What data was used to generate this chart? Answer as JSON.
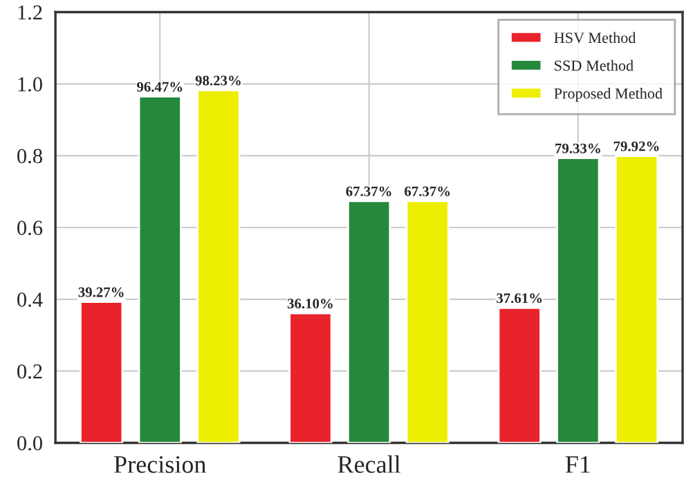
{
  "chart_data": {
    "type": "bar",
    "categories": [
      "Precision",
      "Recall",
      "F1"
    ],
    "series": [
      {
        "name": "HSV Method",
        "color": "#e8232b",
        "values": [
          0.3927,
          0.361,
          0.3761
        ],
        "value_labels": [
          "39.27%",
          "36.10%",
          "37.61%"
        ]
      },
      {
        "name": "SSD Method",
        "color": "#25883a",
        "values": [
          0.9647,
          0.6737,
          0.7933
        ],
        "value_labels": [
          "96.47%",
          "67.37%",
          "79.33%"
        ]
      },
      {
        "name": "Proposed Method",
        "color": "#eeee00",
        "values": [
          0.9823,
          0.6737,
          0.7992
        ],
        "value_labels": [
          "98.23%",
          "67.37%",
          "79.92%"
        ]
      }
    ],
    "ylim": [
      0,
      1.2
    ],
    "yticks": [
      {
        "value": 0,
        "label": "0.0"
      },
      {
        "value": 0.2,
        "label": "0.2"
      },
      {
        "value": 0.4,
        "label": "0.4"
      },
      {
        "value": 0.6,
        "label": "0.6"
      },
      {
        "value": 0.8,
        "label": "0.8"
      },
      {
        "value": 1.0,
        "label": "1.0"
      },
      {
        "value": 1.2,
        "label": "1.2"
      }
    ],
    "grid": true,
    "legend": "top right"
  }
}
